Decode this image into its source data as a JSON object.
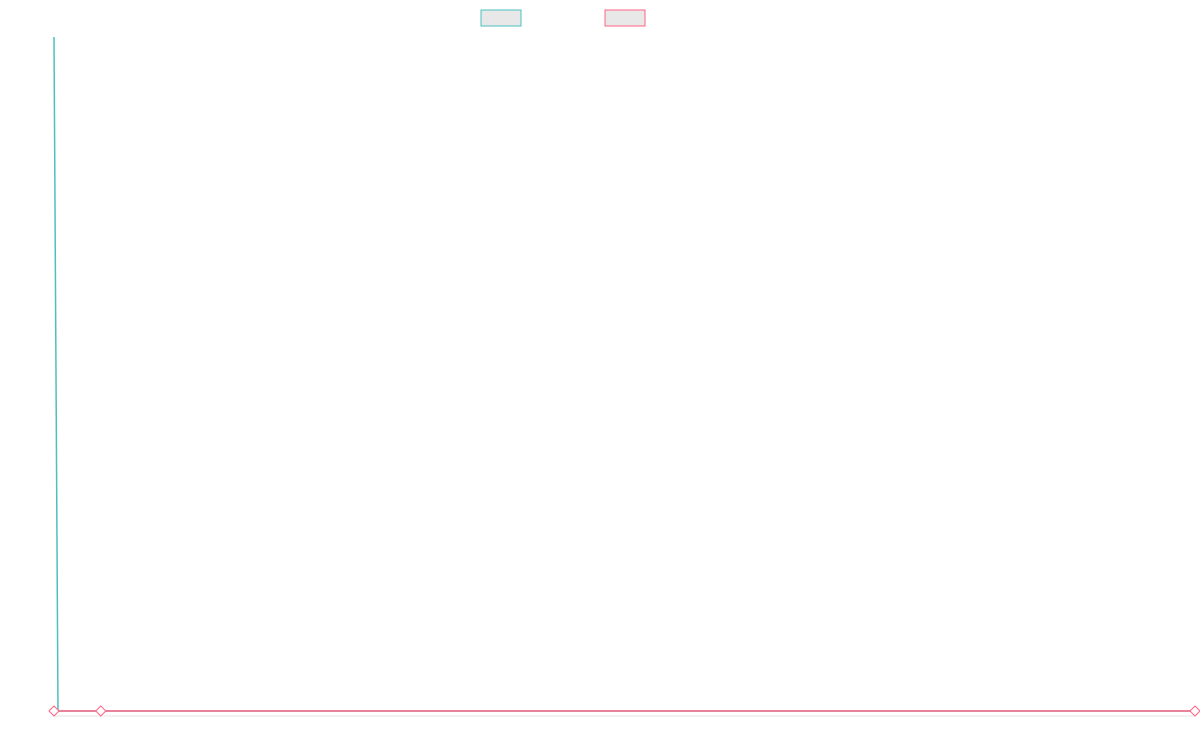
{
  "chart_data": {
    "type": "line",
    "xlim": [
      0,
      100
    ],
    "ylim": [
      0,
      100
    ],
    "series": [
      {
        "color": "#4bc0c0",
        "x": [
          0,
          0.35,
          100
        ],
        "values": [
          100,
          0,
          0
        ],
        "point_style": "none"
      },
      {
        "color": "#ff6384",
        "x": [
          0,
          4.1,
          100
        ],
        "values": [
          0,
          0,
          0
        ],
        "point_style": "diamond"
      }
    ]
  }
}
